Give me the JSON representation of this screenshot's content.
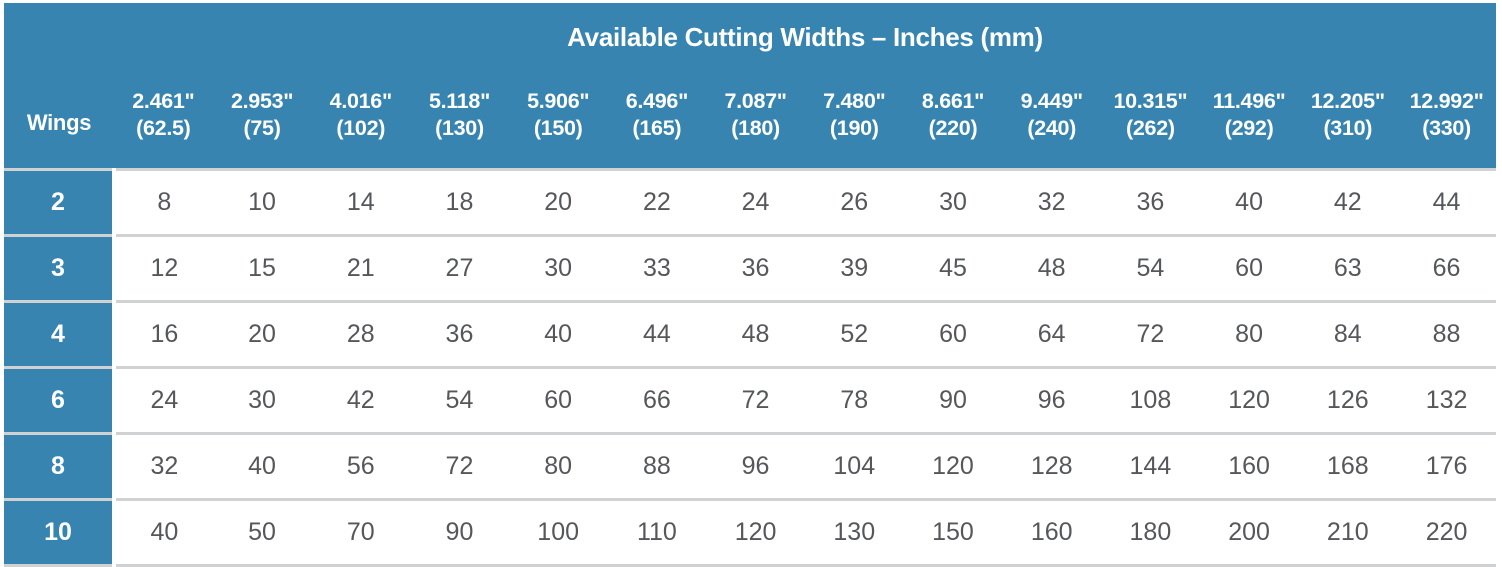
{
  "table": {
    "title": "Available Cutting Widths – Inches (mm)",
    "wings_header": "Wings",
    "columns": [
      {
        "inches": "2.461\"",
        "mm": "(62.5)"
      },
      {
        "inches": "2.953\"",
        "mm": "(75)"
      },
      {
        "inches": "4.016\"",
        "mm": "(102)"
      },
      {
        "inches": "5.118\"",
        "mm": "(130)"
      },
      {
        "inches": "5.906\"",
        "mm": "(150)"
      },
      {
        "inches": "6.496\"",
        "mm": "(165)"
      },
      {
        "inches": "7.087\"",
        "mm": "(180)"
      },
      {
        "inches": "7.480\"",
        "mm": "(190)"
      },
      {
        "inches": "8.661\"",
        "mm": "(220)"
      },
      {
        "inches": "9.449\"",
        "mm": "(240)"
      },
      {
        "inches": "10.315\"",
        "mm": "(262)"
      },
      {
        "inches": "11.496\"",
        "mm": "(292)"
      },
      {
        "inches": "12.205\"",
        "mm": "(310)"
      },
      {
        "inches": "12.992\"",
        "mm": "(330)"
      }
    ],
    "rows": [
      {
        "wings": "2",
        "values": [
          8,
          10,
          14,
          18,
          20,
          22,
          24,
          26,
          30,
          32,
          36,
          40,
          42,
          44
        ]
      },
      {
        "wings": "3",
        "values": [
          12,
          15,
          21,
          27,
          30,
          33,
          36,
          39,
          45,
          48,
          54,
          60,
          63,
          66
        ]
      },
      {
        "wings": "4",
        "values": [
          16,
          20,
          28,
          36,
          40,
          44,
          48,
          52,
          60,
          64,
          72,
          80,
          84,
          88
        ]
      },
      {
        "wings": "6",
        "values": [
          24,
          30,
          42,
          54,
          60,
          66,
          72,
          78,
          90,
          96,
          108,
          120,
          126,
          132
        ]
      },
      {
        "wings": "8",
        "values": [
          32,
          40,
          56,
          72,
          80,
          88,
          96,
          104,
          120,
          128,
          144,
          160,
          168,
          176
        ]
      },
      {
        "wings": "10",
        "values": [
          40,
          50,
          70,
          90,
          100,
          110,
          120,
          130,
          150,
          160,
          180,
          200,
          210,
          220
        ]
      }
    ]
  },
  "colors": {
    "header_blue": "#3684af",
    "divider_gray": "#cfd1d2",
    "cell_text_gray": "#55575b"
  }
}
